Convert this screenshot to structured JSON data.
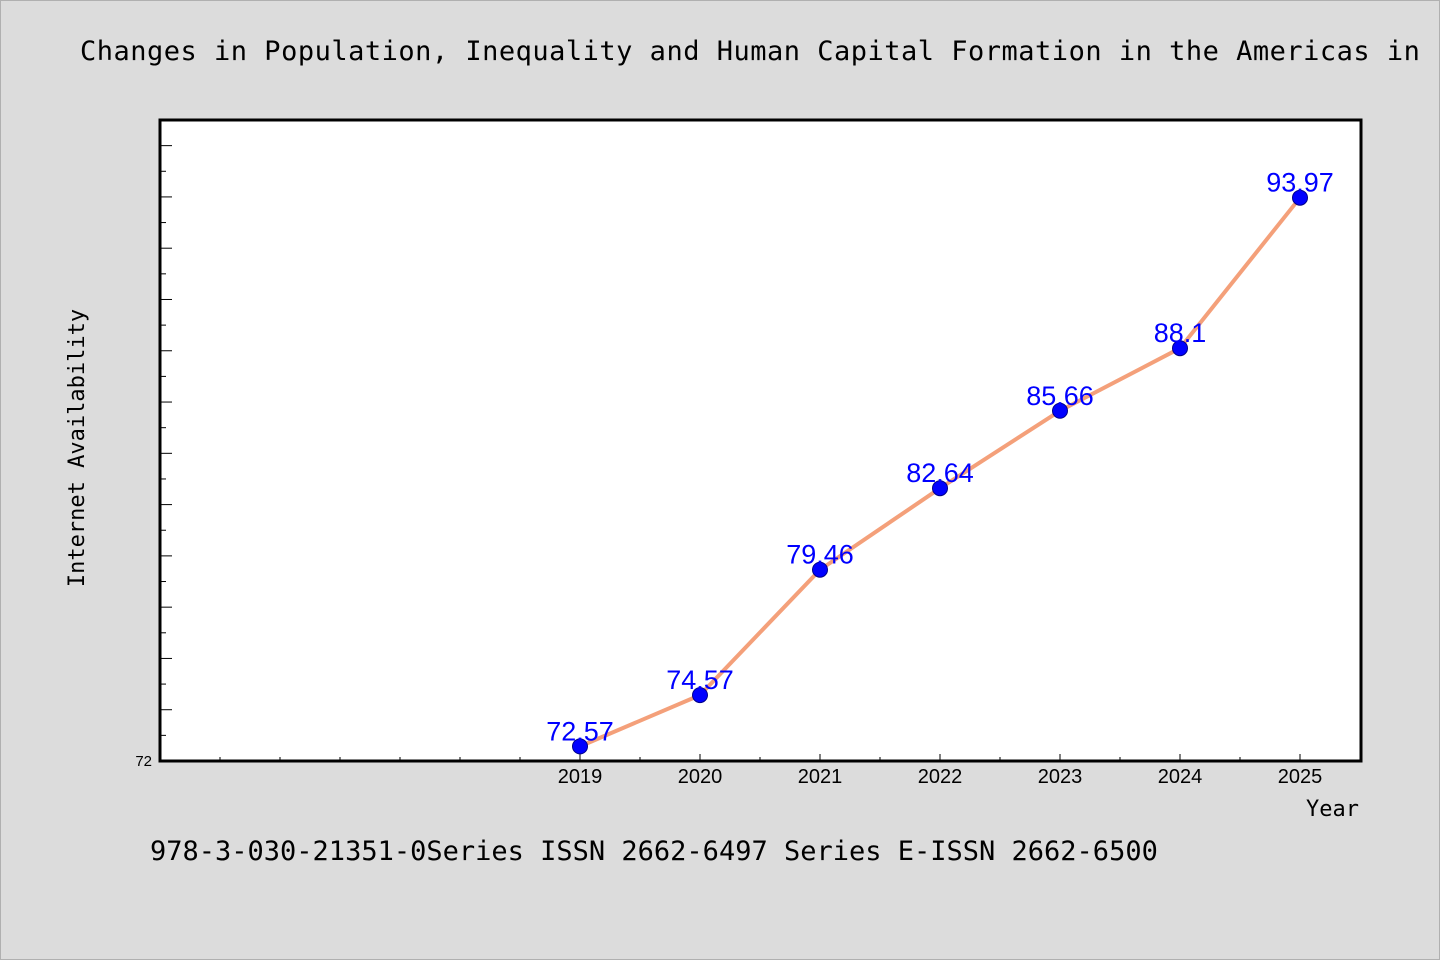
{
  "title": "Changes in Population, Inequality and Human Capital Formation in the Americas in",
  "footer": "978-3-030-21351-0Series ISSN 2662-6497 Series E-ISSN 2662-6500",
  "chart_data": {
    "type": "line",
    "x": [
      "2019",
      "2020",
      "2021",
      "2022",
      "2023",
      "2024",
      "2025"
    ],
    "series": [
      {
        "values": [
          72.57,
          74.57,
          79.46,
          82.64,
          85.66,
          88.1,
          93.97
        ]
      }
    ],
    "xlabel": "Year",
    "ylabel": "Internet Availability",
    "ytick_labels": [
      "72"
    ],
    "ylim": [
      72,
      97
    ],
    "line_color": "#f4a07a",
    "marker_color": "#0000ff",
    "label_color": "#0000ff",
    "grid": false
  }
}
